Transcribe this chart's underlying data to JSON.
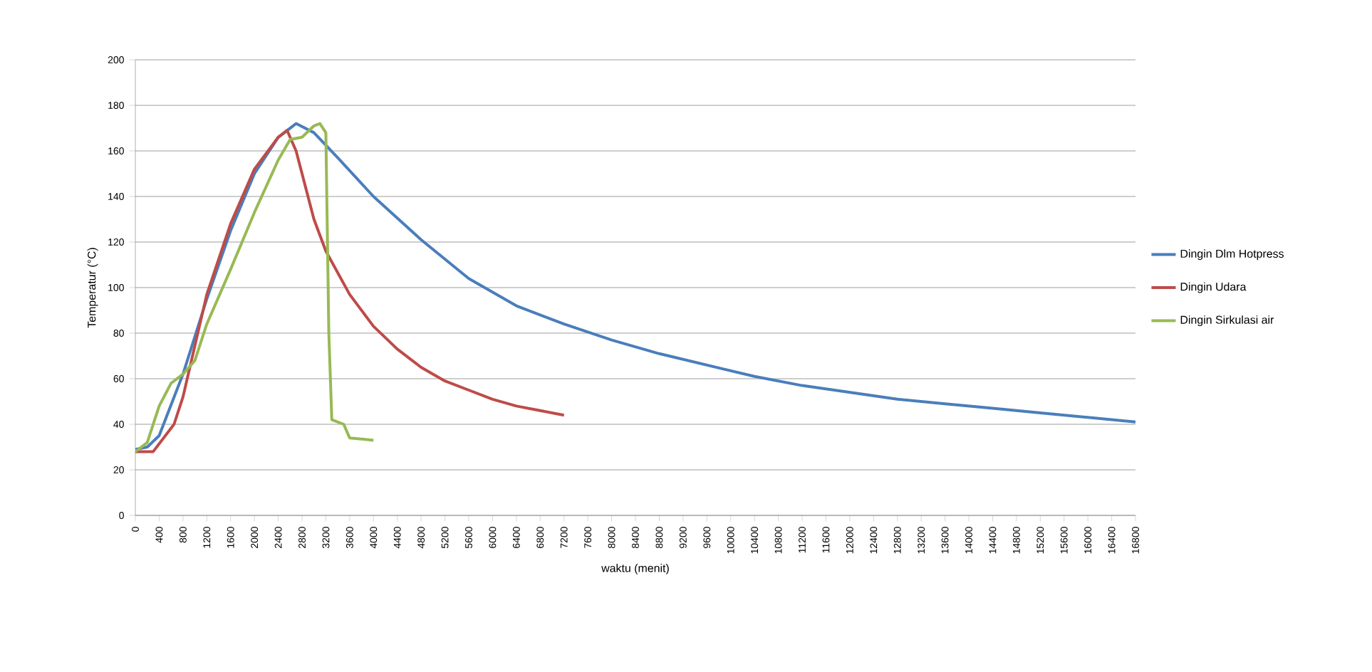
{
  "chart_data": {
    "type": "line",
    "xlabel": "waktu (menit)",
    "ylabel": "Temperatur (°C)",
    "xlim": [
      0,
      16800
    ],
    "xticks": [
      0,
      400,
      800,
      1200,
      1600,
      2000,
      2400,
      2800,
      3200,
      3600,
      4000,
      4400,
      4800,
      5200,
      5600,
      6000,
      6400,
      6800,
      7200,
      7600,
      8000,
      8400,
      8800,
      9200,
      9600,
      10000,
      10400,
      10800,
      11200,
      11600,
      12000,
      12400,
      12800,
      13200,
      13600,
      14000,
      14400,
      14800,
      15200,
      15600,
      16000,
      16400,
      16800
    ],
    "ylim": [
      0,
      200
    ],
    "yticks": [
      0,
      20,
      40,
      60,
      80,
      100,
      120,
      140,
      160,
      180,
      200
    ],
    "grid": "y",
    "legend": "right",
    "marker": "none",
    "line_style": "solid",
    "series": [
      {
        "name": "Dingin Dlm Hotpress",
        "color": "#4a7ebb",
        "x": [
          0,
          200,
          400,
          800,
          1200,
          1600,
          2000,
          2400,
          2700,
          3000,
          3400,
          4000,
          4800,
          5600,
          6400,
          7200,
          8000,
          8800,
          9600,
          10400,
          11200,
          12000,
          12800,
          13600,
          14400,
          15200,
          16000,
          16800
        ],
        "values": [
          29,
          30,
          35,
          62,
          95,
          125,
          150,
          166,
          172,
          168,
          157,
          140,
          121,
          104,
          92,
          84,
          77,
          71,
          66,
          61,
          57,
          54,
          51,
          49,
          47,
          45,
          43,
          41
        ]
      },
      {
        "name": "Dingin Udara",
        "color": "#be4b48",
        "x": [
          0,
          300,
          650,
          800,
          1200,
          1600,
          2000,
          2400,
          2550,
          2700,
          3000,
          3200,
          3600,
          4000,
          4400,
          4800,
          5200,
          5600,
          6000,
          6400,
          6800,
          7200
        ],
        "values": [
          28,
          28,
          40,
          52,
          97,
          128,
          152,
          166,
          169,
          160,
          130,
          116,
          97,
          83,
          73,
          65,
          59,
          55,
          51,
          48,
          46,
          44
        ]
      },
      {
        "name": "Dingin Sirkulasi air",
        "color": "#98b954",
        "x": [
          0,
          200,
          400,
          600,
          800,
          1000,
          1200,
          1600,
          2000,
          2400,
          2600,
          2800,
          3000,
          3100,
          3200,
          3250,
          3300,
          3500,
          3600,
          4000
        ],
        "values": [
          28,
          32,
          48,
          58,
          62,
          68,
          84,
          108,
          133,
          156,
          165,
          166,
          171,
          172,
          168,
          80,
          42,
          40,
          34,
          33
        ]
      }
    ]
  }
}
